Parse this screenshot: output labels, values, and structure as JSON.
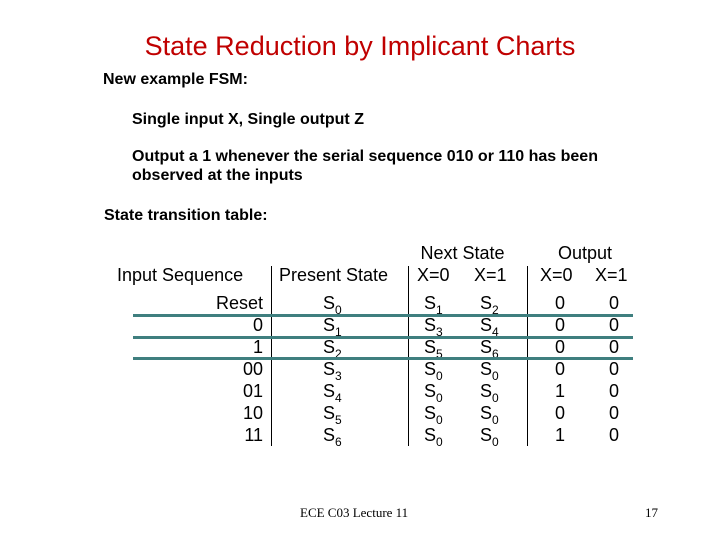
{
  "title": "State Reduction by Implicant Charts",
  "intro": "New example FSM:",
  "bullet1": "Single input X, Single output Z",
  "bullet2_line1": "Output a 1 whenever the serial sequence 010 or 110 has been",
  "bullet2_line2": "observed at the inputs",
  "table_heading": "State transition table:",
  "table": {
    "headers": {
      "next_state": "Next State",
      "output": "Output",
      "input_sequence": "Input Sequence",
      "present_state": "Present State",
      "ns_x0": "X=0",
      "ns_x1": "X=1",
      "out_x0": "X=0",
      "out_x1": "X=1"
    },
    "rows": [
      {
        "input": "Reset",
        "ps": "S",
        "ps_sub": "0",
        "ns0": "S",
        "ns0_sub": "1",
        "ns1": "S",
        "ns1_sub": "2",
        "out0": "0",
        "out1": "0"
      },
      {
        "input": "0",
        "ps": "S",
        "ps_sub": "1",
        "ns0": "S",
        "ns0_sub": "3",
        "ns1": "S",
        "ns1_sub": "4",
        "out0": "0",
        "out1": "0"
      },
      {
        "input": "1",
        "ps": "S",
        "ps_sub": "2",
        "ns0": "S",
        "ns0_sub": "5",
        "ns1": "S",
        "ns1_sub": "6",
        "out0": "0",
        "out1": "0"
      },
      {
        "input": "00",
        "ps": "S",
        "ps_sub": "3",
        "ns0": "S",
        "ns0_sub": "0",
        "ns1": "S",
        "ns1_sub": "0",
        "out0": "0",
        "out1": "0"
      },
      {
        "input": "01",
        "ps": "S",
        "ps_sub": "4",
        "ns0": "S",
        "ns0_sub": "0",
        "ns1": "S",
        "ns1_sub": "0",
        "out0": "1",
        "out1": "0"
      },
      {
        "input": "10",
        "ps": "S",
        "ps_sub": "5",
        "ns0": "S",
        "ns0_sub": "0",
        "ns1": "S",
        "ns1_sub": "0",
        "out0": "0",
        "out1": "0"
      },
      {
        "input": "11",
        "ps": "S",
        "ps_sub": "6",
        "ns0": "S",
        "ns0_sub": "0",
        "ns1": "S",
        "ns1_sub": "0",
        "out0": "1",
        "out1": "0"
      }
    ]
  },
  "footer": {
    "course": "ECE C03 Lecture 11",
    "page": "17"
  },
  "colors": {
    "title": "#c00000",
    "highlight_line": "#3f7f7f"
  }
}
